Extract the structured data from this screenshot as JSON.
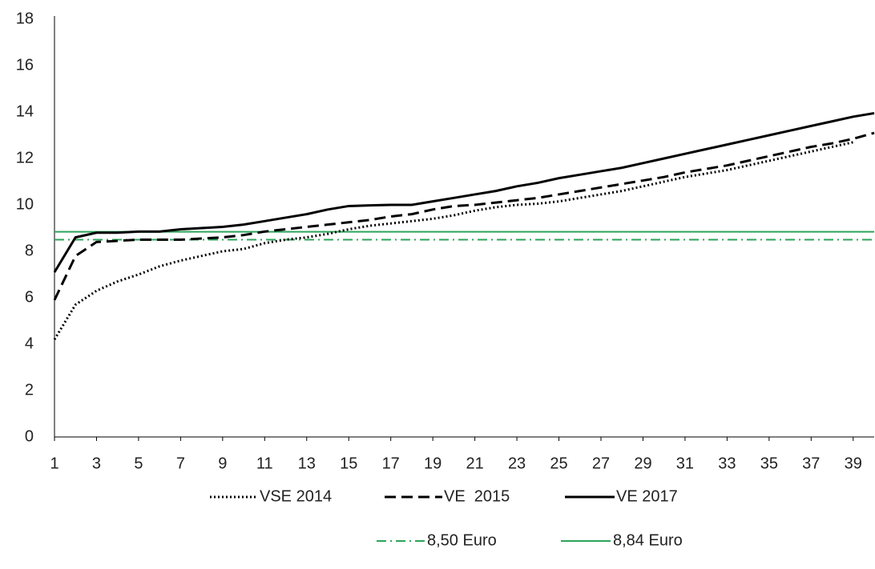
{
  "chart_data": {
    "type": "line",
    "x": [
      1,
      2,
      3,
      4,
      5,
      6,
      7,
      8,
      9,
      10,
      11,
      12,
      13,
      14,
      15,
      16,
      17,
      18,
      19,
      20,
      21,
      22,
      23,
      24,
      25,
      26,
      27,
      28,
      29,
      30,
      31,
      32,
      33,
      34,
      35,
      36,
      37,
      38,
      39,
      40
    ],
    "xlim": [
      1,
      40
    ],
    "xticks": [
      1,
      3,
      5,
      7,
      9,
      11,
      13,
      15,
      17,
      19,
      21,
      23,
      25,
      27,
      29,
      31,
      33,
      35,
      37,
      39
    ],
    "ylim": [
      0,
      18
    ],
    "yticks": [
      0,
      2,
      4,
      6,
      8,
      10,
      12,
      14,
      16,
      18
    ],
    "series": [
      {
        "name": "VSE 2014",
        "color": "#000000",
        "dash": "dotted",
        "values": [
          4.2,
          5.7,
          6.3,
          6.7,
          7.0,
          7.35,
          7.6,
          7.8,
          8.0,
          8.1,
          8.35,
          8.5,
          8.6,
          8.75,
          8.95,
          9.1,
          9.2,
          9.3,
          9.4,
          9.55,
          9.75,
          9.9,
          10.0,
          10.05,
          10.15,
          10.3,
          10.45,
          10.6,
          10.8,
          11.0,
          11.2,
          11.35,
          11.5,
          11.7,
          11.9,
          12.1,
          12.3,
          12.5,
          12.7,
          null
        ]
      },
      {
        "name": "VE  2015",
        "color": "#000000",
        "dash": "dashed",
        "values": [
          5.9,
          7.8,
          8.4,
          8.45,
          8.5,
          8.5,
          8.5,
          8.55,
          8.6,
          8.7,
          8.85,
          8.95,
          9.05,
          9.15,
          9.25,
          9.35,
          9.5,
          9.6,
          9.8,
          9.95,
          10.0,
          10.1,
          10.2,
          10.3,
          10.45,
          10.6,
          10.75,
          10.9,
          11.05,
          11.2,
          11.4,
          11.55,
          11.7,
          11.9,
          12.1,
          12.3,
          12.5,
          12.65,
          12.85,
          13.1
        ]
      },
      {
        "name": "VE 2017",
        "color": "#000000",
        "dash": "solid",
        "values": [
          7.1,
          8.6,
          8.8,
          8.8,
          8.85,
          8.85,
          8.95,
          9.0,
          9.05,
          9.15,
          9.3,
          9.45,
          9.6,
          9.8,
          9.95,
          9.98,
          10.0,
          10.0,
          10.15,
          10.3,
          10.45,
          10.6,
          10.8,
          10.95,
          11.15,
          11.3,
          11.45,
          11.6,
          11.8,
          12.0,
          12.2,
          12.4,
          12.6,
          12.8,
          13.0,
          13.2,
          13.4,
          13.6,
          13.8,
          13.95
        ]
      }
    ],
    "hlines": [
      {
        "name": "8,50 Euro",
        "value": 8.5,
        "color": "#2ca55a",
        "dash": "dashdot"
      },
      {
        "name": "8,84 Euro",
        "value": 8.84,
        "color": "#2ca55a",
        "dash": "solid"
      }
    ]
  }
}
